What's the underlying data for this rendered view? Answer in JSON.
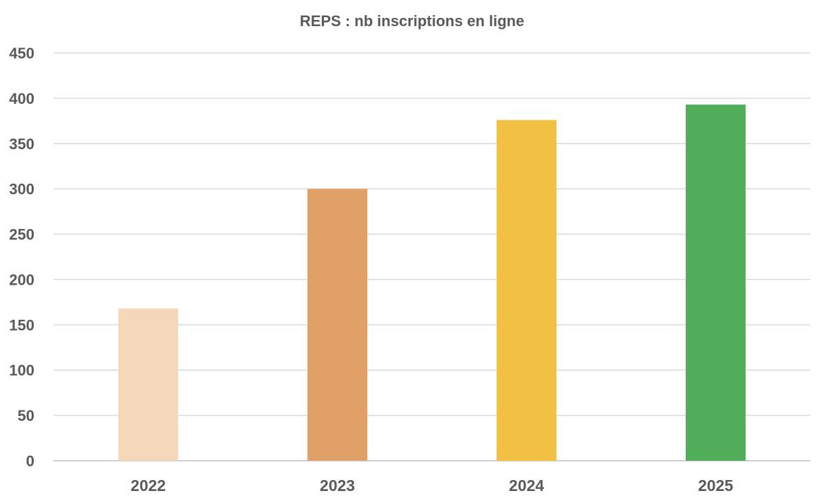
{
  "chart_data": {
    "type": "bar",
    "title": "REPS  : nb inscriptions en ligne",
    "xlabel": "",
    "ylabel": "",
    "categories": [
      "2022",
      "2023",
      "2024",
      "2025"
    ],
    "values": [
      168,
      300,
      376,
      393
    ],
    "colors": [
      "#f5d7b9",
      "#e0a068",
      "#f2c143",
      "#52ad5b"
    ],
    "ylim": [
      0,
      450
    ],
    "yticks": [
      "0",
      "50",
      "100",
      "150",
      "200",
      "250",
      "300",
      "350",
      "400",
      "450"
    ],
    "grid": true,
    "legend": "none"
  }
}
